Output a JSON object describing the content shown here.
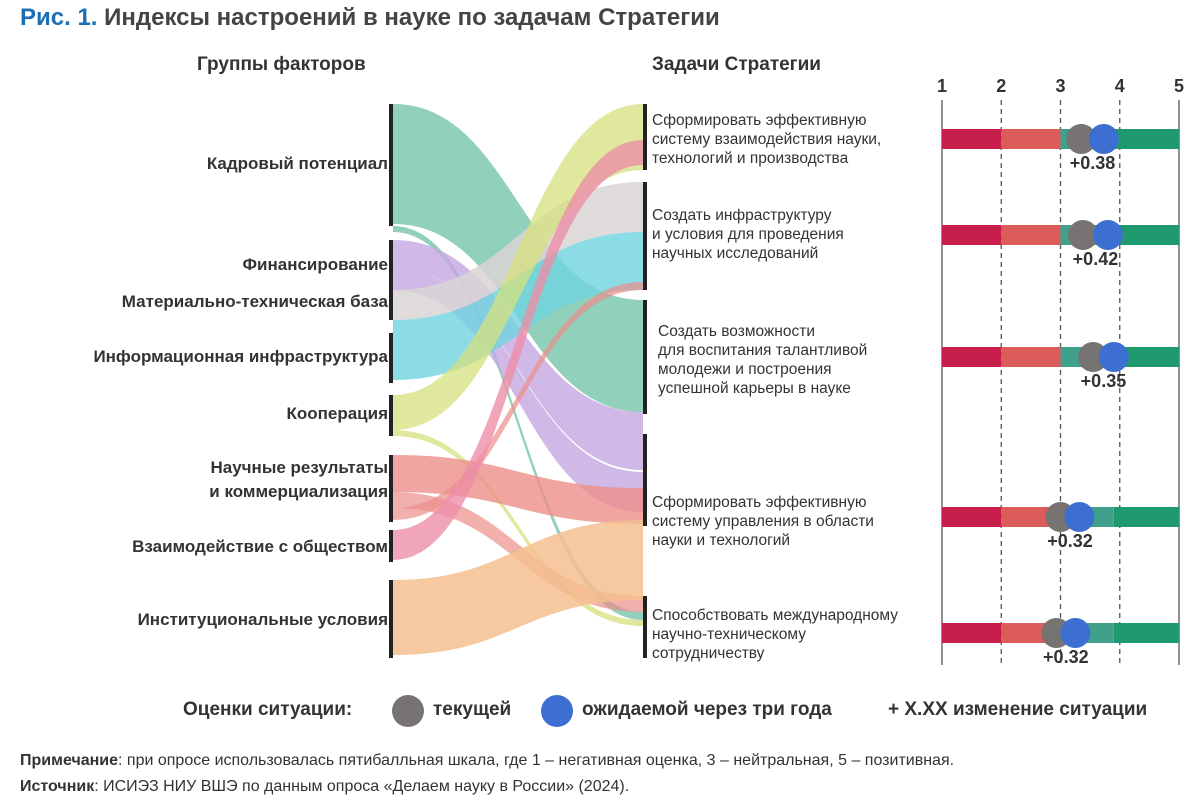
{
  "title_prefix": "Рис. 1.",
  "title_text": "Индексы настроений в науке по задачам Стратегии",
  "left_header": "Группы факторов",
  "right_header": "Задачи Стратегии",
  "factors": [
    {
      "lines": [
        "Кадровый потенциал"
      ],
      "color": "#7ec9b0"
    },
    {
      "lines": [
        "Финансирование"
      ],
      "color": "#c4a8e0"
    },
    {
      "lines": [
        "Материально-техническая база"
      ],
      "color": "#d9d5d4"
    },
    {
      "lines": [
        "Информационная инфраструктура"
      ],
      "color": "#6fd3de"
    },
    {
      "lines": [
        "Кооперация"
      ],
      "color": "#d6e07c"
    },
    {
      "lines": [
        "Научные результаты",
        "и коммерциализация"
      ],
      "color": "#ec8f8a"
    },
    {
      "lines": [
        "Взаимодействие с обществом"
      ],
      "color": "#ec8fa8"
    },
    {
      "lines": [
        "Институциональные условия"
      ],
      "color": "#f4bf8f"
    }
  ],
  "tasks": [
    {
      "lines": [
        "Сформировать эффективную",
        "систему взаимодействия науки,",
        "технологий и производства"
      ]
    },
    {
      "lines": [
        "Создать инфраструктуру",
        "и условия для проведения",
        "научных исследований"
      ]
    },
    {
      "lines": [
        "Создать возможности",
        "для воспитания талантливой",
        "молодежи и построения",
        "успешной карьеры в науке"
      ]
    },
    {
      "lines": [
        "Сформировать эффективную",
        "систему управления в области",
        "науки и технологий"
      ]
    },
    {
      "lines": [
        "Способствовать международному",
        "научно-техническому",
        "сотрудничеству"
      ]
    }
  ],
  "chart_data": {
    "type": "dot-range",
    "x_ticks": [
      "1",
      "2",
      "3",
      "4",
      "5"
    ],
    "xlim": [
      1,
      5
    ],
    "categories": [
      "Сформировать эффективную систему взаимодействия науки, технологий и производства",
      "Создать инфраструктуру и условия для проведения научных исследований",
      "Создать возможности для воспитания талантливой молодежи и построения успешной карьеры в науке",
      "Сформировать эффективную систему управления в области науки и технологий",
      "Способствовать международному научно-техническому сотрудничеству"
    ],
    "series": [
      {
        "name": "текущей",
        "values": [
          3.35,
          3.38,
          3.55,
          3.0,
          2.93
        ],
        "color": "#777373"
      },
      {
        "name": "ожидаемой через три года",
        "values": [
          3.73,
          3.8,
          3.9,
          3.32,
          3.25
        ],
        "color": "#3c6fd1"
      }
    ],
    "change_labels": [
      "+0.38",
      "+0.42",
      "+0.35",
      "+0.32",
      "+0.32"
    ],
    "bar_colors": {
      "low": "#c81e4b",
      "mid_low": "#dc5c5c",
      "mid_high": "#3fa08c",
      "high": "#1e9a6e"
    }
  },
  "legend": {
    "label": "Оценки ситуации:",
    "current": "текущей",
    "expected": "ожидаемой через три года",
    "change": "+ X.XX изменение ситуации"
  },
  "note": {
    "label": "Примечание",
    "text": ": при опросе использовалась пятибалльная шкала, где 1 – негативная оценка, 3 – нейтральная, 5 – позитивная."
  },
  "source": {
    "label": "Источник",
    "text": ": ИСИЭЗ НИУ ВШЭ по данным опроса «Делаем науку в России» (2024)."
  }
}
